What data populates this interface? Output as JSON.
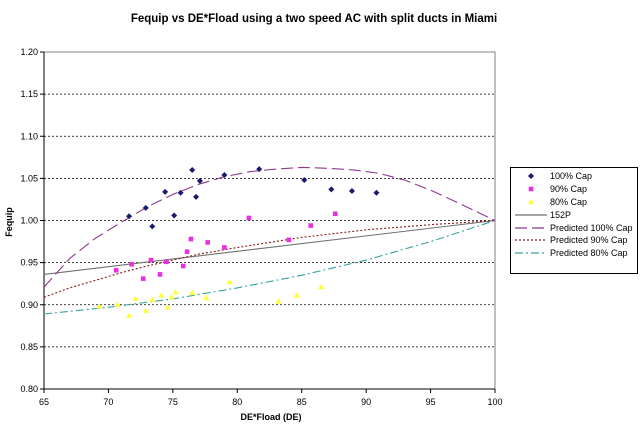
{
  "chart_data": {
    "type": "scatter",
    "title": "Fequip vs DE*Fload using a two speed AC with split ducts in Miami",
    "xlabel": "DE*Fload (DE)",
    "ylabel": "Fequip",
    "xlim": [
      65,
      100
    ],
    "ylim": [
      0.8,
      1.2
    ],
    "x_ticks": [
      "65",
      "70",
      "75",
      "80",
      "85",
      "90",
      "95",
      "100"
    ],
    "y_ticks": [
      "0.80",
      "0.85",
      "0.90",
      "0.95",
      "1.00",
      "1.05",
      "1.10",
      "1.15",
      "1.20"
    ],
    "grid": "horizontal dotted",
    "legend_position": "right",
    "series": [
      {
        "name": "100% Cap",
        "kind": "scatter",
        "marker": "diamond",
        "color": "#1a1a6e",
        "points": [
          [
            71.6,
            1.005
          ],
          [
            72.9,
            1.015
          ],
          [
            73.4,
            0.993
          ],
          [
            74.4,
            1.034
          ],
          [
            75.1,
            1.006
          ],
          [
            75.6,
            1.033
          ],
          [
            76.5,
            1.06
          ],
          [
            76.8,
            1.028
          ],
          [
            77.1,
            1.047
          ],
          [
            79.0,
            1.054
          ],
          [
            81.7,
            1.061
          ],
          [
            85.2,
            1.048
          ],
          [
            87.3,
            1.037
          ],
          [
            88.9,
            1.035
          ],
          [
            90.8,
            1.033
          ]
        ]
      },
      {
        "name": "90% Cap",
        "kind": "scatter",
        "marker": "square",
        "color": "#e830e0",
        "points": [
          [
            70.6,
            0.941
          ],
          [
            71.8,
            0.948
          ],
          [
            72.7,
            0.931
          ],
          [
            73.3,
            0.953
          ],
          [
            74.0,
            0.936
          ],
          [
            74.5,
            0.951
          ],
          [
            75.8,
            0.946
          ],
          [
            76.1,
            0.963
          ],
          [
            76.4,
            0.978
          ],
          [
            77.7,
            0.974
          ],
          [
            79.0,
            0.968
          ],
          [
            80.9,
            1.003
          ],
          [
            84.0,
            0.977
          ],
          [
            85.7,
            0.994
          ],
          [
            87.6,
            1.008
          ]
        ]
      },
      {
        "name": "80% Cap",
        "kind": "scatter",
        "marker": "triangle",
        "color": "#ffff33",
        "points": [
          [
            69.3,
            0.898
          ],
          [
            70.7,
            0.9
          ],
          [
            71.6,
            0.887
          ],
          [
            72.1,
            0.907
          ],
          [
            72.9,
            0.893
          ],
          [
            73.4,
            0.906
          ],
          [
            74.1,
            0.911
          ],
          [
            74.6,
            0.897
          ],
          [
            74.9,
            0.909
          ],
          [
            75.2,
            0.915
          ],
          [
            76.5,
            0.914
          ],
          [
            77.6,
            0.908
          ],
          [
            79.4,
            0.927
          ],
          [
            83.2,
            0.904
          ],
          [
            84.6,
            0.911
          ],
          [
            86.5,
            0.921
          ]
        ]
      },
      {
        "name": "152P",
        "kind": "line",
        "style": "solid",
        "color": "#707070",
        "points": [
          [
            65,
            0.936
          ],
          [
            100,
            1.0
          ]
        ]
      },
      {
        "name": "Predicted 100% Cap",
        "kind": "line",
        "style": "longdash",
        "color": "#8b3a8b",
        "points": [
          [
            65,
            0.921
          ],
          [
            67,
            0.955
          ],
          [
            69,
            0.979
          ],
          [
            71,
            0.998
          ],
          [
            73,
            1.016
          ],
          [
            75,
            1.031
          ],
          [
            77,
            1.043
          ],
          [
            79,
            1.052
          ],
          [
            81,
            1.058
          ],
          [
            83,
            1.061
          ],
          [
            85,
            1.063
          ],
          [
            87,
            1.062
          ],
          [
            89,
            1.06
          ],
          [
            91,
            1.056
          ],
          [
            93,
            1.048
          ],
          [
            95,
            1.036
          ],
          [
            97,
            1.022
          ],
          [
            100,
            1.0
          ]
        ]
      },
      {
        "name": "Predicted 90% Cap",
        "kind": "line",
        "style": "dotted",
        "color": "#8b1a1a",
        "points": [
          [
            65,
            0.909
          ],
          [
            67,
            0.92
          ],
          [
            69,
            0.929
          ],
          [
            71,
            0.938
          ],
          [
            73,
            0.946
          ],
          [
            75,
            0.953
          ],
          [
            77,
            0.96
          ],
          [
            80,
            0.968
          ],
          [
            85,
            0.98
          ],
          [
            90,
            0.989
          ],
          [
            95,
            0.995
          ],
          [
            100,
            1.0
          ]
        ]
      },
      {
        "name": "Predicted 80% Cap",
        "kind": "line",
        "style": "dashdot",
        "color": "#3aa0a0",
        "points": [
          [
            65,
            0.889
          ],
          [
            70,
            0.897
          ],
          [
            75,
            0.907
          ],
          [
            80,
            0.92
          ],
          [
            85,
            0.935
          ],
          [
            90,
            0.953
          ],
          [
            95,
            0.975
          ],
          [
            100,
            1.0
          ]
        ]
      }
    ]
  }
}
